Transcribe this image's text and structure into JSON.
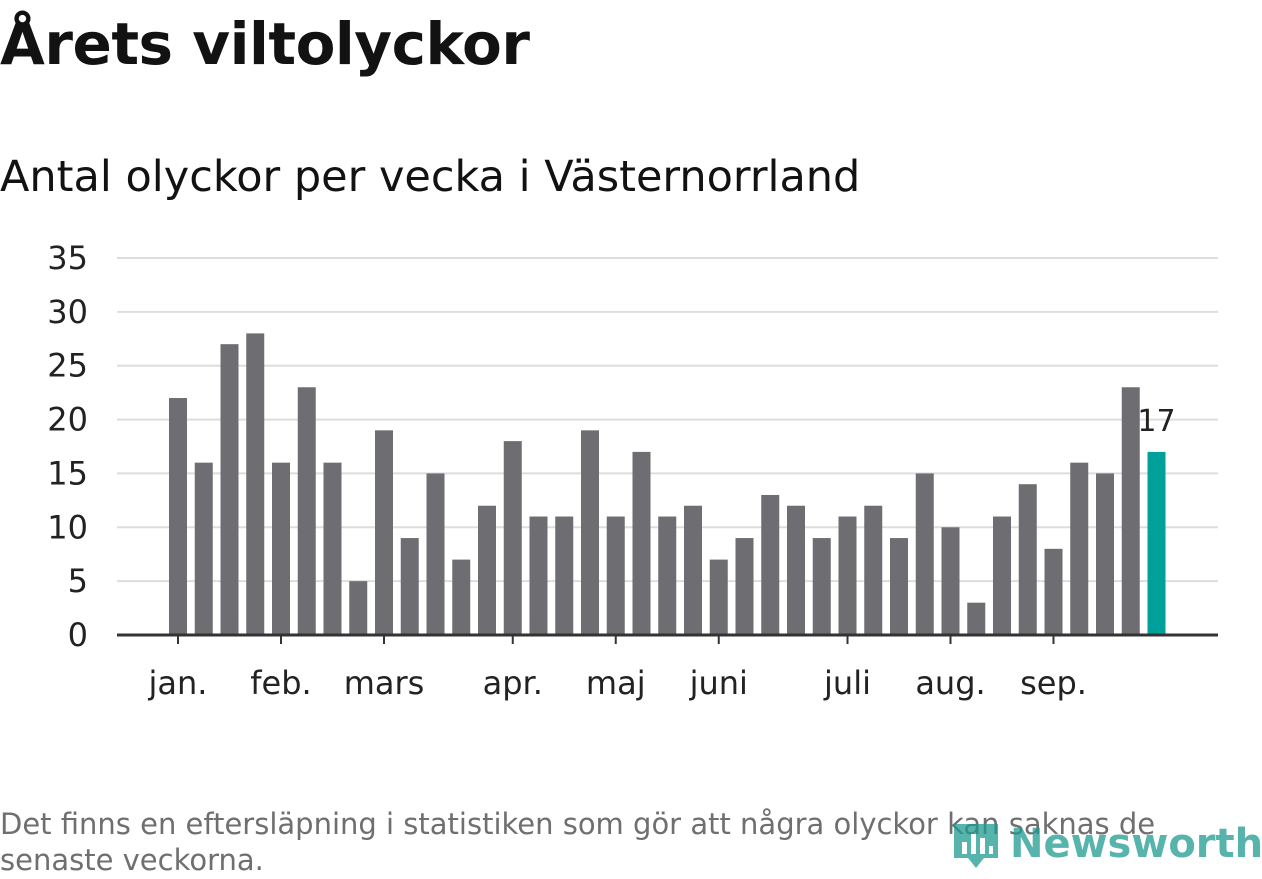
{
  "header": {
    "title": "Årets viltolyckor",
    "subtitle": "Antal olyckor per vecka i Västernorrland"
  },
  "footnote": "Det finns en eftersläpning i statistiken som gör att några olyckor kan saknas de senaste veckorna.",
  "logo": {
    "text": "Newsworthy",
    "icon": "newsworthy-logo-icon"
  },
  "colors": {
    "bar": "#6e6d72",
    "highlight": "#00a19a",
    "grid": "#dddddd",
    "axis": "#333333"
  },
  "chart_data": {
    "type": "bar",
    "title": "Årets viltolyckor",
    "subtitle": "Antal olyckor per vecka i Västernorrland",
    "xlabel": "",
    "ylabel": "",
    "ylim": [
      0,
      35
    ],
    "yticks": [
      0,
      5,
      10,
      15,
      20,
      25,
      30,
      35
    ],
    "grid": true,
    "values": [
      22,
      16,
      27,
      28,
      16,
      23,
      16,
      5,
      19,
      9,
      15,
      7,
      12,
      18,
      11,
      11,
      19,
      11,
      17,
      11,
      12,
      7,
      9,
      13,
      12,
      9,
      11,
      12,
      9,
      15,
      10,
      3,
      11,
      14,
      8,
      16,
      15,
      23,
      17
    ],
    "month_ticks": [
      {
        "label": "jan.",
        "week_index": 0
      },
      {
        "label": "feb.",
        "week_index": 4
      },
      {
        "label": "mars",
        "week_index": 8
      },
      {
        "label": "apr.",
        "week_index": 13
      },
      {
        "label": "maj",
        "week_index": 17
      },
      {
        "label": "juni",
        "week_index": 21
      },
      {
        "label": "juli",
        "week_index": 26
      },
      {
        "label": "aug.",
        "week_index": 30
      },
      {
        "label": "sep.",
        "week_index": 34
      }
    ],
    "highlight_index": 38,
    "highlight_label": "17"
  }
}
